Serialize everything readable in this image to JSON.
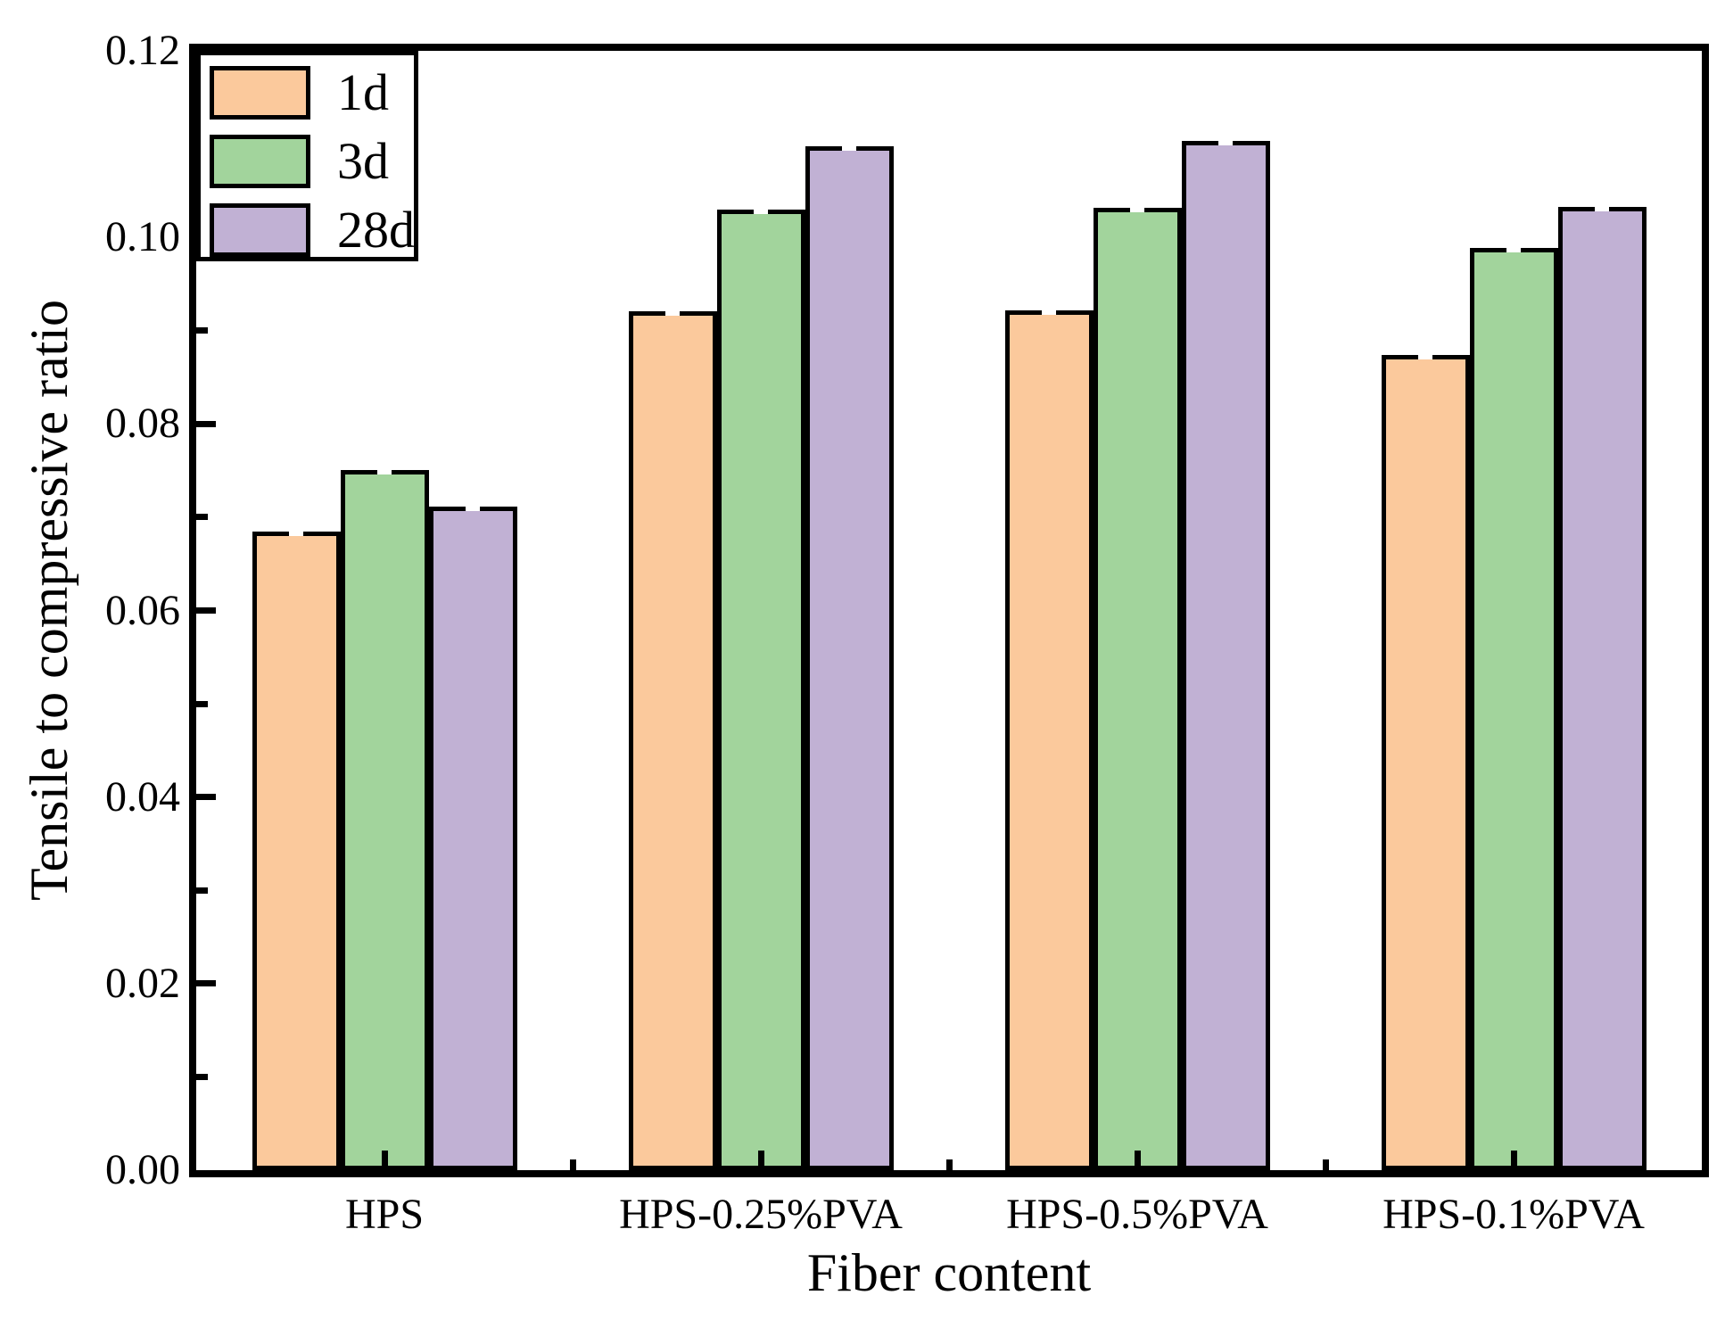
{
  "chart_data": {
    "type": "bar",
    "title": "",
    "xlabel": "Fiber content",
    "ylabel": "Tensile to compressive ratio",
    "categories": [
      "HPS",
      "HPS-0.25%PVA",
      "HPS-0.5%PVA",
      "HPS-0.1%PVA"
    ],
    "series": [
      {
        "name": "1d",
        "color": "#FBC99C",
        "values": [
          0.0685,
          0.0921,
          0.0922,
          0.0874
        ]
      },
      {
        "name": "3d",
        "color": "#A2D49C",
        "values": [
          0.0751,
          0.103,
          0.1032,
          0.0989
        ]
      },
      {
        "name": "28d",
        "color": "#C1B1D4",
        "values": [
          0.0711,
          0.1098,
          0.1103,
          0.1033
        ]
      }
    ],
    "ylim": [
      0,
      0.12
    ],
    "ytick_step": 0.02,
    "ytick_minor_step": 0.01,
    "ytick_decimals": 2,
    "legend_position": "top-left",
    "grid": false,
    "bar_outline_color": "#000000",
    "error_cap_color": "#FFFFFF",
    "axis_color": "#000000",
    "background_color": "#FFFFFF"
  }
}
